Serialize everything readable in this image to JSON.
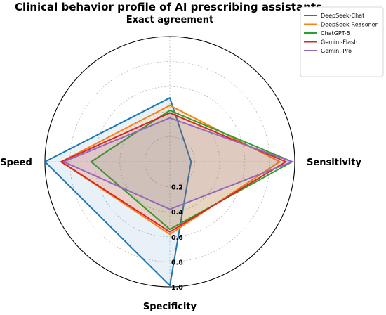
{
  "chart_data": {
    "type": "radar",
    "title": "Clinical behavior profile of AI prescribing assistants",
    "axes": [
      "Exact agreement",
      "Sensitivity",
      "Specificity",
      "Speed"
    ],
    "rlim": [
      0,
      1.0
    ],
    "rticks": [
      0.2,
      0.4,
      0.6,
      0.8,
      1.0
    ],
    "rtick_labels": [
      "0.2",
      "0.4",
      "0.6",
      "0.8",
      "1.0"
    ],
    "grid": true,
    "legend_position": "top-right",
    "series": [
      {
        "name": "DeepSeek-Chat",
        "color": "#1f77b4",
        "values": [
          0.51,
          0.17,
          0.99,
          1.0
        ]
      },
      {
        "name": "DeepSeek-Reasoner",
        "color": "#ff7f0e",
        "values": [
          0.45,
          0.88,
          0.58,
          0.87
        ]
      },
      {
        "name": "ChatGPT-5",
        "color": "#2ca02c",
        "values": [
          0.41,
          0.98,
          0.54,
          0.63
        ]
      },
      {
        "name": "Gemini-Flash",
        "color": "#d62728",
        "values": [
          0.39,
          0.93,
          0.56,
          0.87
        ]
      },
      {
        "name": "Gemini-Pro",
        "color": "#9467bd",
        "values": [
          0.35,
          0.98,
          0.38,
          0.85
        ]
      }
    ]
  }
}
